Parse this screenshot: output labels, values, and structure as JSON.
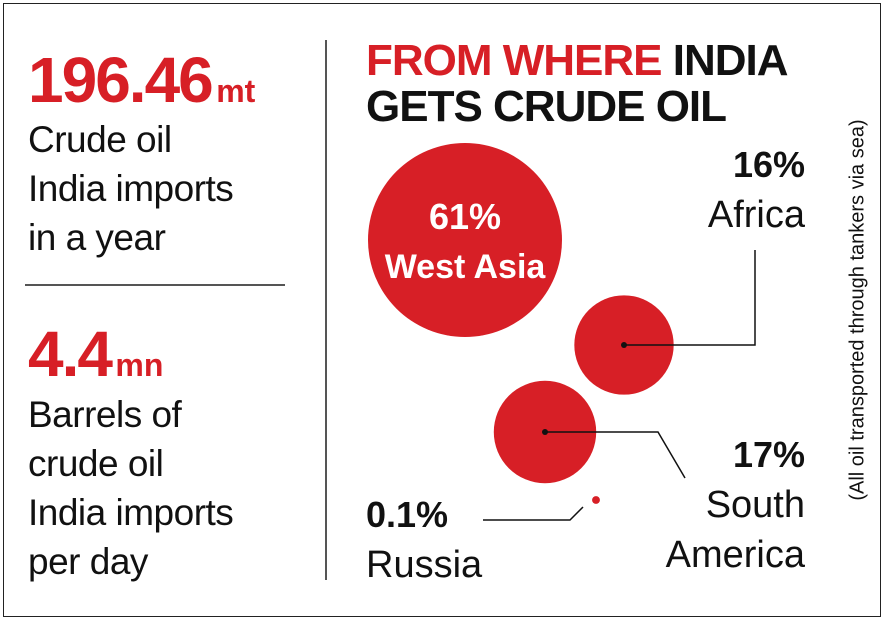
{
  "stats": [
    {
      "value": 196.46,
      "unit": "mt",
      "lines": [
        "Crude oil",
        "India imports",
        "in a year"
      ]
    },
    {
      "value": 4.4,
      "unit": "mn",
      "lines": [
        "Barrels of",
        "crude oil",
        "India imports",
        "per day"
      ]
    }
  ],
  "chart_data": {
    "type": "bubble",
    "title_parts": [
      "FROM WHERE",
      "INDIA",
      "GETS CRUDE OIL"
    ],
    "note": "(All oil transported through tankers via sea)",
    "categories": [
      "West Asia",
      "Africa",
      "South America",
      "Russia"
    ],
    "values": [
      61,
      16,
      17,
      0.1
    ],
    "value_labels": [
      "61%",
      "16%",
      "17%",
      "0.1%"
    ],
    "color": "#d71f26"
  }
}
